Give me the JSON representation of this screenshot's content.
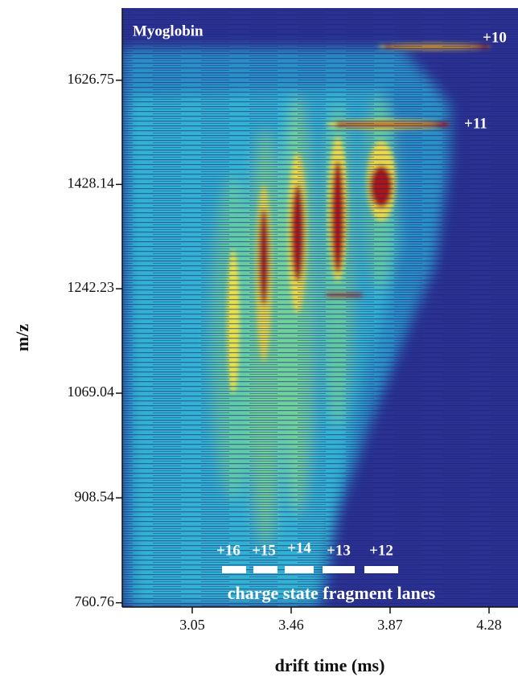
{
  "chart_data": {
    "type": "heatmap",
    "title": "Myoglobin",
    "xlabel": "drift time (ms)",
    "ylabel": "m/z",
    "xlim": [
      2.76,
      4.4
    ],
    "ylim": [
      755,
      1772
    ],
    "yscale": "sqrt",
    "xticks": [
      3.05,
      3.46,
      3.87,
      4.28
    ],
    "yticks": [
      760.76,
      908.54,
      1069.04,
      1242.23,
      1428.14,
      1626.75
    ],
    "annotations": [
      "+10",
      "+11",
      "+16",
      "+15",
      "+14",
      "+13",
      "+12",
      "charge state fragment lanes"
    ]
  }
}
